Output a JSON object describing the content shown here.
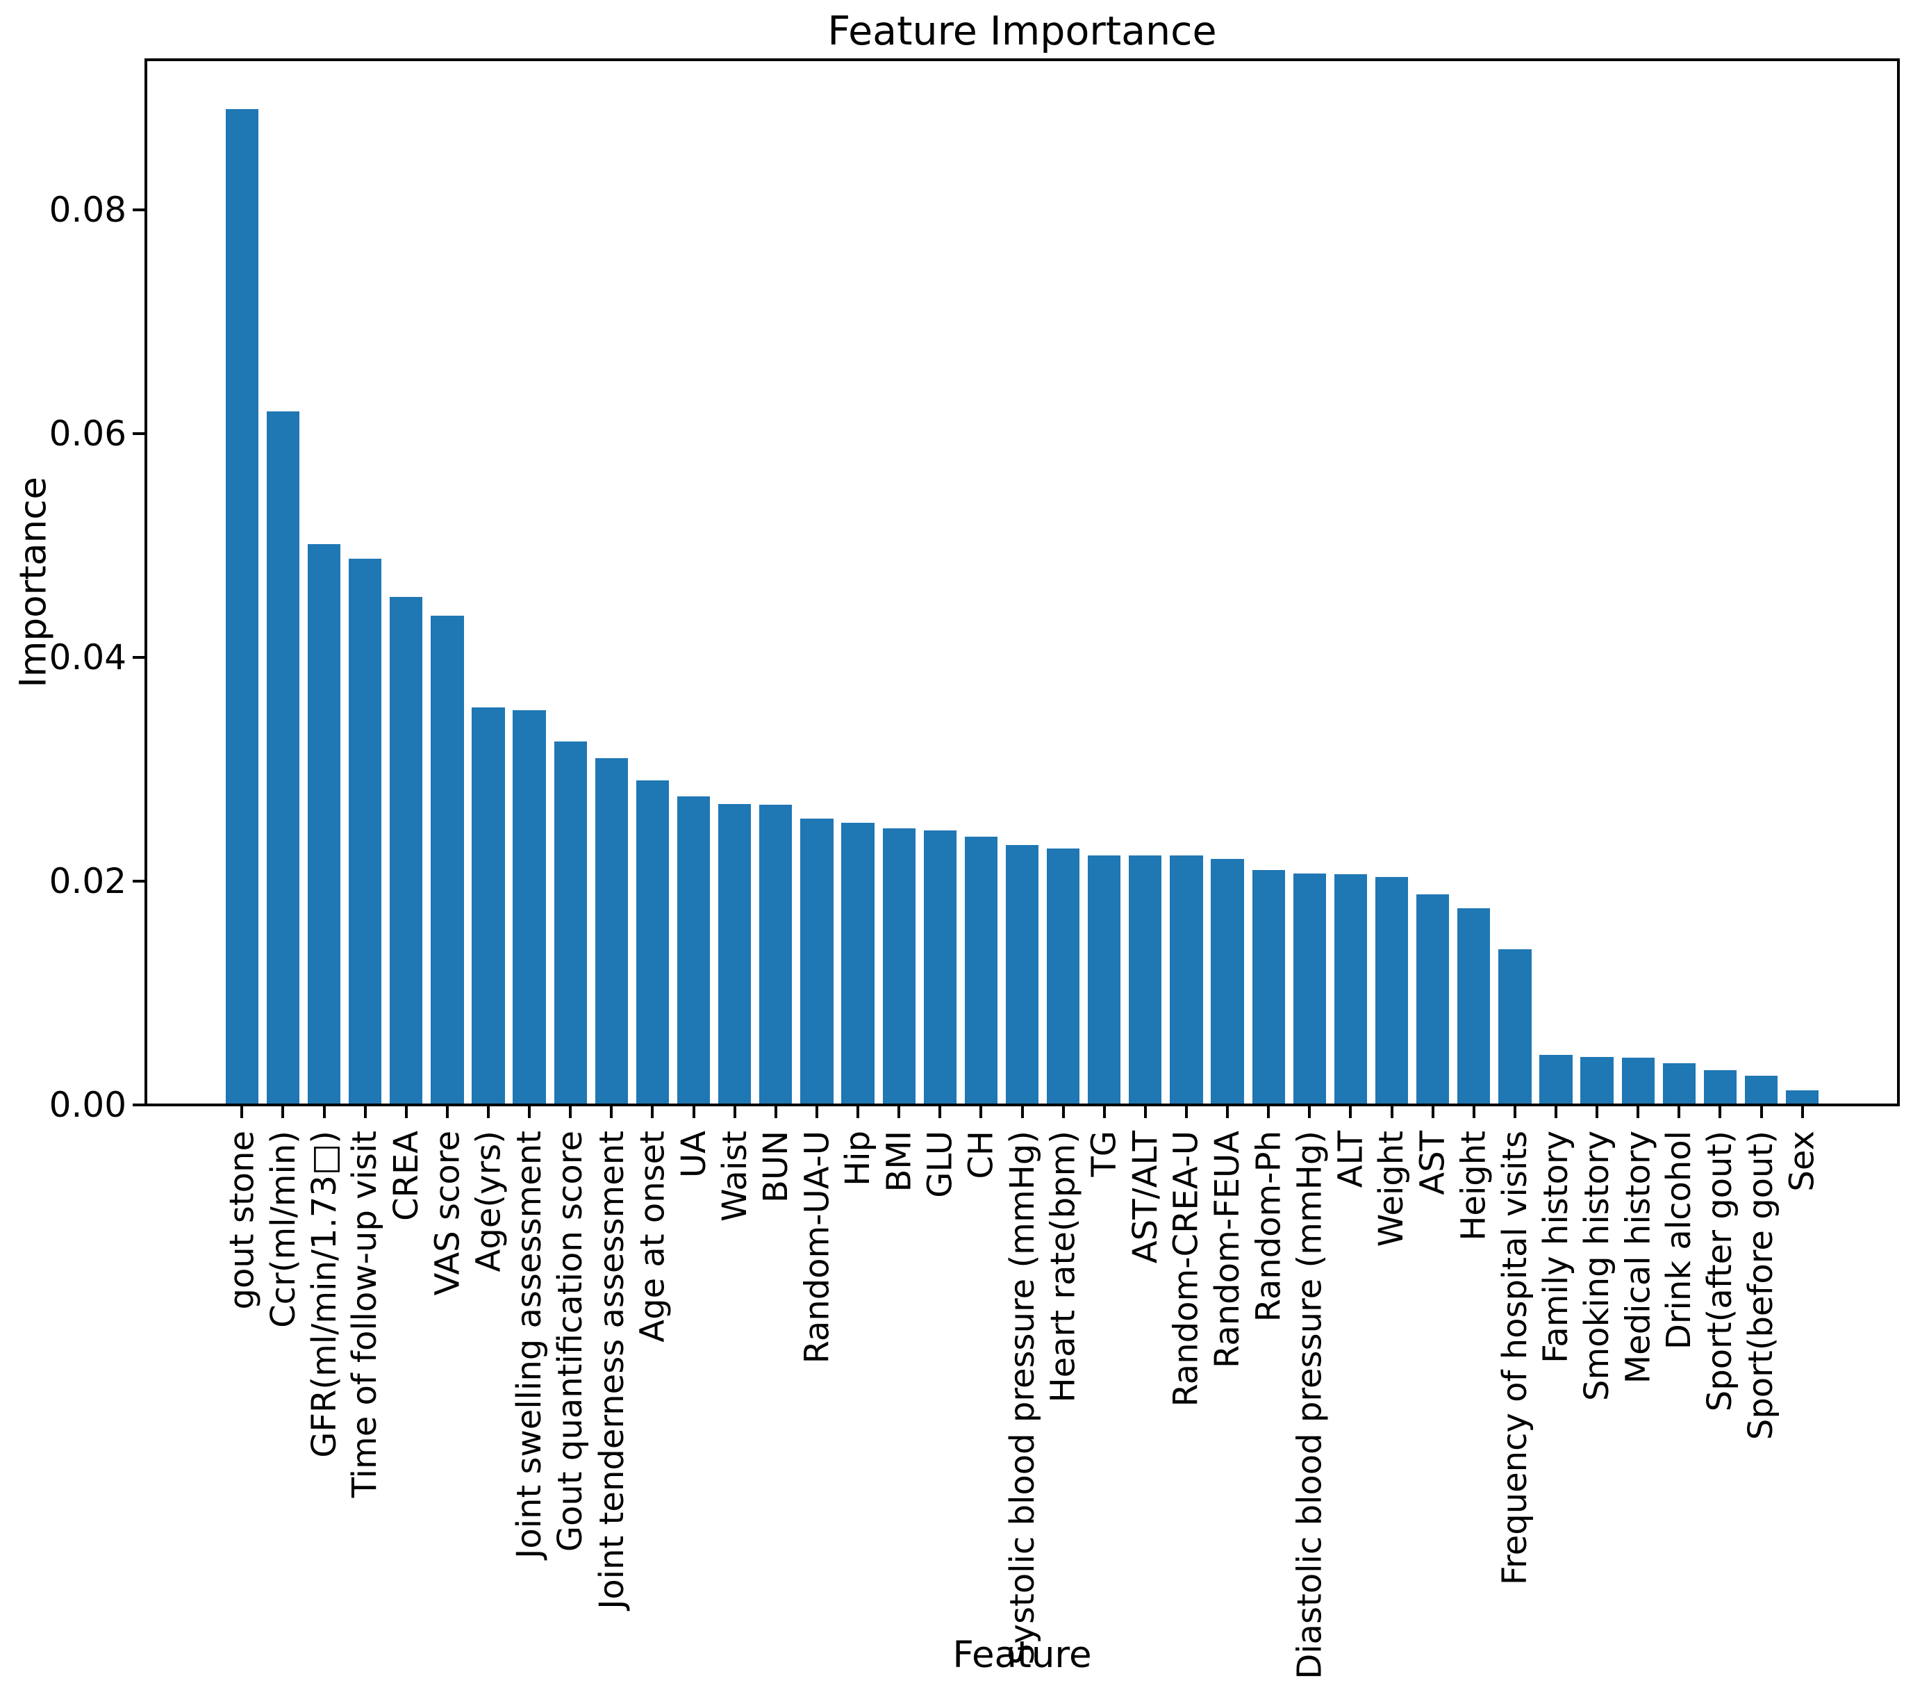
{
  "chart_data": {
    "type": "bar",
    "title": "Feature Importance",
    "xlabel": "Feature",
    "ylabel": "Importance",
    "bar_color": "#1f77b4",
    "background_color": "#ffffff",
    "grid": false,
    "legend": "none",
    "ylim": [
      0,
      0.0934
    ],
    "yticks": [
      0,
      0.02,
      0.04,
      0.06,
      0.08
    ],
    "ytick_labels": [
      "0.00",
      "0.02",
      "0.04",
      "0.06",
      "0.08"
    ],
    "categories": [
      "gout stone",
      "Ccr(ml/min)",
      "GFR(ml/min/1.73□)",
      "Time of follow-up visit",
      "CREA",
      "VAS score",
      "Age(yrs)",
      "Joint swelling assessment",
      "Gout quantification score",
      "Joint tenderness assessment",
      "Age at onset",
      "UA",
      "Waist",
      "BUN",
      "Random-UA-U",
      "Hip",
      "BMI",
      "GLU",
      "CH",
      "Systolic blood pressure (mmHg)",
      "Heart rate(bpm)",
      "TG",
      "AST/ALT",
      "Random-CREA-U",
      "Random-FEUA",
      "Random-Ph",
      "Diastolic blood pressure (mmHg)",
      "ALT",
      "Weight",
      "AST",
      "Height",
      "Frequency of hospital visits",
      "Family history",
      "Smoking history",
      "Medical history",
      "Drink alcohol",
      "Sport(after gout)",
      "Sport(before gout)",
      "Sex"
    ],
    "values": [
      0.089,
      0.062,
      0.0501,
      0.0488,
      0.0454,
      0.0437,
      0.0355,
      0.0353,
      0.0325,
      0.031,
      0.029,
      0.0276,
      0.0269,
      0.0268,
      0.0256,
      0.0252,
      0.0247,
      0.0245,
      0.024,
      0.0232,
      0.0229,
      0.0223,
      0.0223,
      0.0223,
      0.022,
      0.021,
      0.0207,
      0.0206,
      0.0204,
      0.0188,
      0.0176,
      0.0139,
      0.0045,
      0.0043,
      0.0042,
      0.0037,
      0.0031,
      0.0026,
      0.0013
    ]
  }
}
